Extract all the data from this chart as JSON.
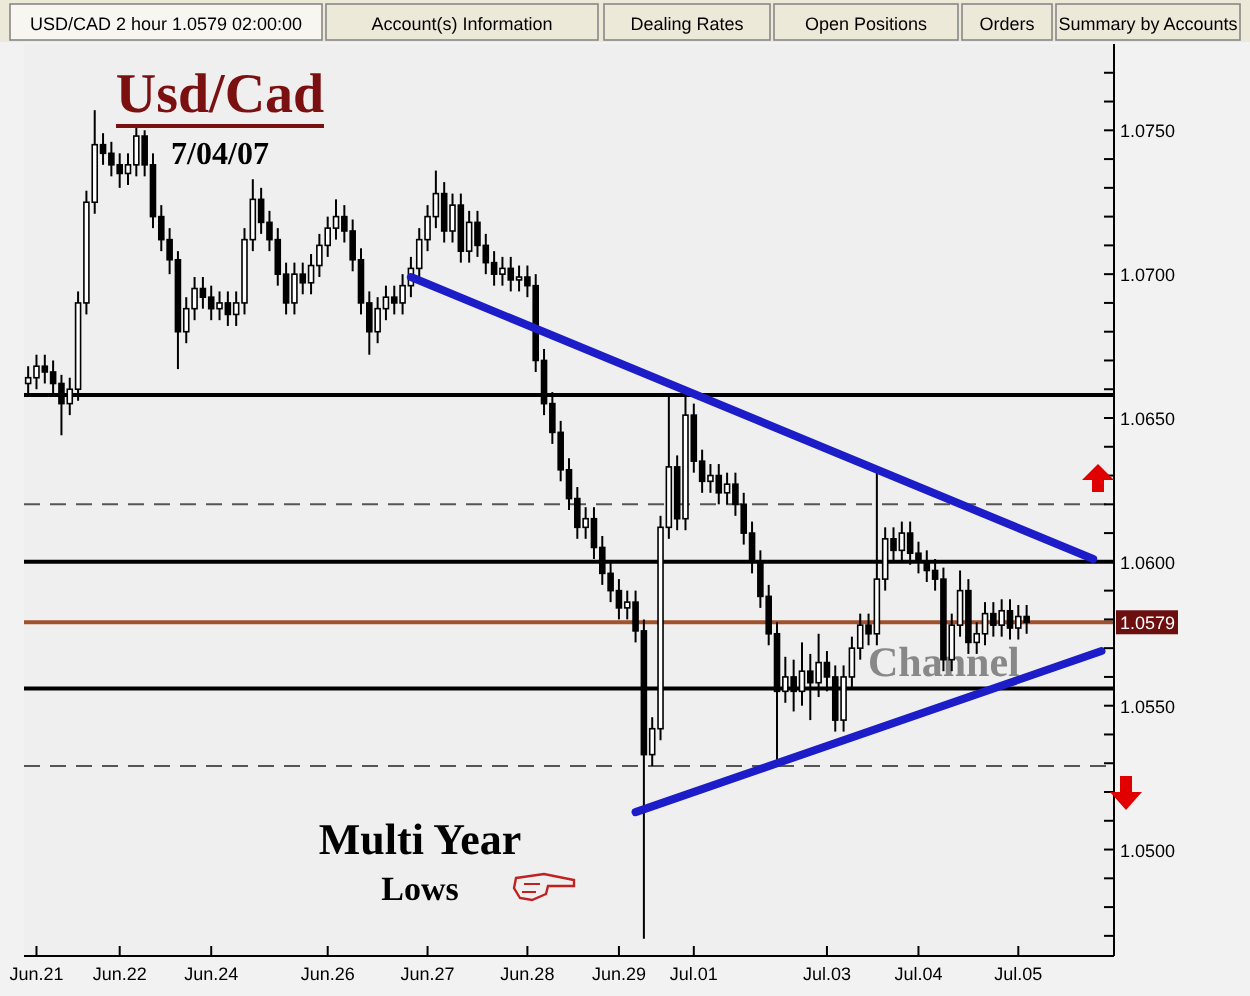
{
  "chart_data": {
    "type": "candlestick",
    "title": "Usd/Cad",
    "subtitle": "7/04/07",
    "annotations": [
      "USD/CAD 2 hour 1.0579 02:00:00",
      "Account(s) Information",
      "Dealing Rates",
      "Open Positions",
      "Orders",
      "Summary by Accounts",
      "Channel",
      "Multi Year",
      "Lows"
    ],
    "categories": [
      null,
      "Jun.21",
      null,
      null,
      null,
      null,
      null,
      null,
      null,
      null,
      null,
      "Jun.22",
      null,
      null,
      null,
      null,
      null,
      null,
      null,
      null,
      null,
      null,
      "Jun.24",
      null,
      null,
      null,
      null,
      null,
      null,
      null,
      null,
      null,
      null,
      null,
      null,
      null,
      "Jun.26",
      null,
      null,
      null,
      null,
      null,
      null,
      null,
      null,
      null,
      null,
      null,
      "Jun.27",
      null,
      null,
      null,
      null,
      null,
      null,
      null,
      null,
      null,
      null,
      null,
      "Jun.28",
      null,
      null,
      null,
      null,
      null,
      null,
      null,
      null,
      null,
      null,
      "Jun.29",
      null,
      null,
      null,
      null,
      null,
      null,
      null,
      null,
      "Jul.01",
      null,
      null,
      null,
      null,
      null,
      null,
      null,
      null,
      null,
      null,
      null,
      null,
      null,
      null,
      null,
      "Jul.03",
      null,
      null,
      null,
      null,
      null,
      null,
      null,
      null,
      null,
      null,
      "Jul.04",
      null,
      null,
      null,
      null,
      null,
      null,
      null,
      null,
      null,
      null,
      null,
      "Jul.05",
      null,
      null,
      null,
      null,
      null,
      null,
      null,
      null,
      null,
      null,
      null
    ],
    "ohlc": [
      [
        1.0662,
        1.0668,
        1.0658,
        1.0664
      ],
      [
        1.0664,
        1.0672,
        1.066,
        1.0668
      ],
      [
        1.0668,
        1.0672,
        1.0662,
        1.0666
      ],
      [
        1.0666,
        1.067,
        1.0658,
        1.0662
      ],
      [
        1.0662,
        1.0665,
        1.0644,
        1.0655
      ],
      [
        1.0655,
        1.0664,
        1.0651,
        1.066
      ],
      [
        1.066,
        1.0694,
        1.0656,
        1.069
      ],
      [
        1.069,
        1.0729,
        1.0686,
        1.0725
      ],
      [
        1.0725,
        1.0757,
        1.0721,
        1.0745
      ],
      [
        1.0745,
        1.0749,
        1.0738,
        1.0742
      ],
      [
        1.0742,
        1.0746,
        1.0734,
        1.0738
      ],
      [
        1.0738,
        1.0742,
        1.073,
        1.0735
      ],
      [
        1.0735,
        1.0742,
        1.0731,
        1.0738
      ],
      [
        1.0738,
        1.0752,
        1.0734,
        1.0748
      ],
      [
        1.0748,
        1.075,
        1.0734,
        1.0738
      ],
      [
        1.0738,
        1.0742,
        1.0716,
        1.072
      ],
      [
        1.072,
        1.0724,
        1.0708,
        1.0712
      ],
      [
        1.0712,
        1.0716,
        1.07,
        1.0705
      ],
      [
        1.0705,
        1.0708,
        1.0667,
        1.068
      ],
      [
        1.068,
        1.0692,
        1.0676,
        1.0688
      ],
      [
        1.0688,
        1.0699,
        1.0684,
        1.0695
      ],
      [
        1.0695,
        1.0699,
        1.0688,
        1.0692
      ],
      [
        1.0692,
        1.0696,
        1.0684,
        1.0688
      ],
      [
        1.0688,
        1.0694,
        1.0684,
        1.069
      ],
      [
        1.069,
        1.0694,
        1.0682,
        1.0686
      ],
      [
        1.0686,
        1.0694,
        1.0682,
        1.069
      ],
      [
        1.069,
        1.0716,
        1.0686,
        1.0712
      ],
      [
        1.0712,
        1.0733,
        1.0708,
        1.0726
      ],
      [
        1.0726,
        1.073,
        1.0714,
        1.0718
      ],
      [
        1.0718,
        1.0722,
        1.0708,
        1.0712
      ],
      [
        1.0712,
        1.0716,
        1.0696,
        1.07
      ],
      [
        1.07,
        1.0704,
        1.0686,
        1.069
      ],
      [
        1.069,
        1.0704,
        1.0686,
        1.07
      ],
      [
        1.07,
        1.0704,
        1.0693,
        1.0697
      ],
      [
        1.0697,
        1.0707,
        1.0693,
        1.0703
      ],
      [
        1.0703,
        1.0714,
        1.0699,
        1.071
      ],
      [
        1.071,
        1.072,
        1.0706,
        1.0716
      ],
      [
        1.0716,
        1.0726,
        1.0712,
        1.072
      ],
      [
        1.072,
        1.0724,
        1.0711,
        1.0715
      ],
      [
        1.0715,
        1.0719,
        1.0701,
        1.0705
      ],
      [
        1.0705,
        1.0709,
        1.0686,
        1.069
      ],
      [
        1.069,
        1.0694,
        1.0672,
        1.068
      ],
      [
        1.068,
        1.0692,
        1.0676,
        1.0688
      ],
      [
        1.0688,
        1.0696,
        1.0684,
        1.0692
      ],
      [
        1.0692,
        1.0696,
        1.0686,
        1.069
      ],
      [
        1.069,
        1.07,
        1.0686,
        1.0696
      ],
      [
        1.0696,
        1.0706,
        1.0692,
        1.0702
      ],
      [
        1.0702,
        1.0716,
        1.0698,
        1.0712
      ],
      [
        1.0712,
        1.0724,
        1.0708,
        1.072
      ],
      [
        1.072,
        1.0736,
        1.0716,
        1.0728
      ],
      [
        1.0728,
        1.0732,
        1.0711,
        1.0715
      ],
      [
        1.0715,
        1.0728,
        1.0711,
        1.0724
      ],
      [
        1.0724,
        1.0728,
        1.0704,
        1.0708
      ],
      [
        1.0708,
        1.0722,
        1.0704,
        1.0718
      ],
      [
        1.0718,
        1.0722,
        1.0706,
        1.071
      ],
      [
        1.071,
        1.0714,
        1.07,
        1.0704
      ],
      [
        1.0704,
        1.0708,
        1.0696,
        1.07
      ],
      [
        1.07,
        1.0706,
        1.0696,
        1.0702
      ],
      [
        1.0702,
        1.0706,
        1.0694,
        1.0698
      ],
      [
        1.0698,
        1.0703,
        1.0694,
        1.0699
      ],
      [
        1.0699,
        1.0703,
        1.0692,
        1.0696
      ],
      [
        1.0696,
        1.07,
        1.0666,
        1.067
      ],
      [
        1.067,
        1.0674,
        1.0651,
        1.0655
      ],
      [
        1.0655,
        1.0659,
        1.0641,
        1.0645
      ],
      [
        1.0645,
        1.0649,
        1.0628,
        1.0632
      ],
      [
        1.0632,
        1.0636,
        1.0618,
        1.0622
      ],
      [
        1.0622,
        1.0626,
        1.0608,
        1.0612
      ],
      [
        1.0612,
        1.0619,
        1.0608,
        1.0615
      ],
      [
        1.0615,
        1.0619,
        1.0601,
        1.0605
      ],
      [
        1.0605,
        1.0609,
        1.0592,
        1.0596
      ],
      [
        1.0596,
        1.06,
        1.0586,
        1.059
      ],
      [
        1.059,
        1.0594,
        1.058,
        1.0584
      ],
      [
        1.0584,
        1.059,
        1.058,
        1.0586
      ],
      [
        1.0586,
        1.059,
        1.0572,
        1.0576
      ],
      [
        1.0576,
        1.058,
        1.0469,
        1.0533
      ],
      [
        1.0533,
        1.0546,
        1.0529,
        1.0542
      ],
      [
        1.0542,
        1.0616,
        1.0538,
        1.0612
      ],
      [
        1.0612,
        1.0658,
        1.0608,
        1.0633
      ],
      [
        1.0633,
        1.0637,
        1.0611,
        1.0615
      ],
      [
        1.0615,
        1.0658,
        1.0611,
        1.0651
      ],
      [
        1.0651,
        1.0655,
        1.0631,
        1.0635
      ],
      [
        1.0635,
        1.0639,
        1.0624,
        1.0628
      ],
      [
        1.0628,
        1.0634,
        1.0624,
        1.063
      ],
      [
        1.063,
        1.0634,
        1.062,
        1.0624
      ],
      [
        1.0624,
        1.0631,
        1.062,
        1.0627
      ],
      [
        1.0627,
        1.0631,
        1.0616,
        1.062
      ],
      [
        1.062,
        1.0624,
        1.0606,
        1.061
      ],
      [
        1.061,
        1.0614,
        1.0596,
        1.06
      ],
      [
        1.06,
        1.0604,
        1.0584,
        1.0588
      ],
      [
        1.0588,
        1.0592,
        1.0571,
        1.0575
      ],
      [
        1.0575,
        1.0579,
        1.0531,
        1.0555
      ],
      [
        1.0555,
        1.0567,
        1.0551,
        1.056
      ],
      [
        1.056,
        1.0566,
        1.0548,
        1.0555
      ],
      [
        1.0555,
        1.0572,
        1.055,
        1.0562
      ],
      [
        1.0562,
        1.0568,
        1.0545,
        1.0558
      ],
      [
        1.0558,
        1.0575,
        1.0553,
        1.0565
      ],
      [
        1.0565,
        1.0569,
        1.0555,
        1.056
      ],
      [
        1.056,
        1.0564,
        1.0541,
        1.0545
      ],
      [
        1.0545,
        1.0564,
        1.0541,
        1.056
      ],
      [
        1.056,
        1.0574,
        1.0556,
        1.057
      ],
      [
        1.057,
        1.0582,
        1.0566,
        1.0578
      ],
      [
        1.0578,
        1.0582,
        1.0571,
        1.0575
      ],
      [
        1.0575,
        1.0631,
        1.0571,
        1.0594
      ],
      [
        1.0594,
        1.0612,
        1.059,
        1.0608
      ],
      [
        1.0608,
        1.0612,
        1.06,
        1.0604
      ],
      [
        1.0604,
        1.0614,
        1.06,
        1.061
      ],
      [
        1.061,
        1.0614,
        1.0599,
        1.0603
      ],
      [
        1.0603,
        1.0607,
        1.0596,
        1.06
      ],
      [
        1.06,
        1.0604,
        1.0593,
        1.0597
      ],
      [
        1.0597,
        1.0601,
        1.059,
        1.0594
      ],
      [
        1.0594,
        1.0598,
        1.0562,
        1.0566
      ],
      [
        1.0566,
        1.0582,
        1.0562,
        1.0578
      ],
      [
        1.0578,
        1.0597,
        1.0574,
        1.059
      ],
      [
        1.059,
        1.0594,
        1.0568,
        1.0572
      ],
      [
        1.0572,
        1.0579,
        1.0568,
        1.0575
      ],
      [
        1.0575,
        1.0586,
        1.0571,
        1.0582
      ],
      [
        1.0582,
        1.0586,
        1.0574,
        1.0578
      ],
      [
        1.0578,
        1.0587,
        1.0574,
        1.0583
      ],
      [
        1.0583,
        1.0587,
        1.0573,
        1.0577
      ],
      [
        1.0577,
        1.0585,
        1.0573,
        1.0581
      ],
      [
        1.0581,
        1.0585,
        1.0575,
        1.0579
      ],
      null,
      null,
      null,
      null,
      null,
      null,
      null,
      null,
      null,
      null
    ],
    "series": [
      {
        "type": "line",
        "color": "#1c1cc8",
        "values": [
          null,
          null,
          null,
          null,
          null,
          null,
          null,
          null,
          null,
          null,
          null,
          null,
          null,
          null,
          null,
          null,
          null,
          null,
          null,
          null,
          null,
          null,
          null,
          null,
          null,
          null,
          null,
          null,
          null,
          null,
          null,
          null,
          null,
          null,
          null,
          null,
          null,
          null,
          null,
          null,
          null,
          null,
          null,
          null,
          null,
          null,
          1.0699,
          null,
          null,
          null,
          null,
          null,
          null,
          null,
          null,
          null,
          null,
          null,
          null,
          null,
          null,
          null,
          null,
          null,
          null,
          null,
          null,
          null,
          null,
          null,
          null,
          null,
          null,
          null,
          null,
          null,
          null,
          null,
          null,
          null,
          null,
          null,
          null,
          null,
          null,
          null,
          null,
          null,
          null,
          null,
          null,
          null,
          null,
          null,
          null,
          null,
          null,
          null,
          null,
          null,
          null,
          null,
          null,
          null,
          null,
          null,
          null,
          null,
          null,
          null,
          null,
          null,
          null,
          null,
          null,
          null,
          null,
          null,
          null,
          null,
          null,
          null,
          null,
          null,
          null,
          null,
          null,
          null,
          1.0601,
          null,
          null
        ]
      },
      {
        "type": "line",
        "color": "#1c1cc8",
        "values": [
          null,
          null,
          null,
          null,
          null,
          null,
          null,
          null,
          null,
          null,
          null,
          null,
          null,
          null,
          null,
          null,
          null,
          null,
          null,
          null,
          null,
          null,
          null,
          null,
          null,
          null,
          null,
          null,
          null,
          null,
          null,
          null,
          null,
          null,
          null,
          null,
          null,
          null,
          null,
          null,
          null,
          null,
          null,
          null,
          null,
          null,
          null,
          null,
          null,
          null,
          null,
          null,
          null,
          null,
          null,
          null,
          null,
          null,
          null,
          null,
          null,
          null,
          null,
          null,
          null,
          null,
          null,
          null,
          null,
          null,
          null,
          null,
          null,
          1.0513,
          null,
          null,
          null,
          null,
          null,
          null,
          null,
          null,
          null,
          null,
          null,
          null,
          null,
          null,
          null,
          null,
          null,
          null,
          null,
          null,
          null,
          null,
          null,
          null,
          null,
          null,
          null,
          null,
          null,
          null,
          null,
          null,
          null,
          null,
          null,
          null,
          null,
          null,
          null,
          null,
          null,
          null,
          null,
          null,
          null,
          null,
          null,
          null,
          null,
          null,
          null,
          null,
          null,
          null,
          null,
          1.0569,
          null
        ]
      }
    ],
    "ref_lines": [
      {
        "axis": "y",
        "value": 1.0658,
        "color": "#000000",
        "line_style": "solid"
      },
      {
        "axis": "y",
        "value": 1.062,
        "color": "#555555",
        "line_style": "dashed"
      },
      {
        "axis": "y",
        "value": 1.06,
        "color": "#000000",
        "line_style": "solid"
      },
      {
        "axis": "y",
        "value": 1.0579,
        "label": "1.0579",
        "color": "#a0522d",
        "line_style": "solid"
      },
      {
        "axis": "y",
        "value": 1.0556,
        "color": "#000000",
        "line_style": "solid"
      },
      {
        "axis": "y",
        "value": 1.0529,
        "color": "#555555",
        "line_style": "dashed"
      }
    ],
    "ylim": [
      1.0463,
      1.078
    ],
    "yticks": [
      {
        "value": 1.047,
        "label": null
      },
      {
        "value": 1.048,
        "label": null
      },
      {
        "value": 1.049,
        "label": null
      },
      {
        "value": 1.05,
        "label": "1.0500"
      },
      {
        "value": 1.051,
        "label": null
      },
      {
        "value": 1.052,
        "label": null
      },
      {
        "value": 1.053,
        "label": null
      },
      {
        "value": 1.054,
        "label": null
      },
      {
        "value": 1.055,
        "label": "1.0550"
      },
      {
        "value": 1.056,
        "label": null
      },
      {
        "value": 1.057,
        "label": null
      },
      {
        "value": 1.058,
        "label": null
      },
      {
        "value": 1.059,
        "label": null
      },
      {
        "value": 1.06,
        "label": "1.0600"
      },
      {
        "value": 1.061,
        "label": null
      },
      {
        "value": 1.062,
        "label": null
      },
      {
        "value": 1.063,
        "label": null
      },
      {
        "value": 1.064,
        "label": null
      },
      {
        "value": 1.065,
        "label": "1.0650"
      },
      {
        "value": 1.066,
        "label": null
      },
      {
        "value": 1.067,
        "label": null
      },
      {
        "value": 1.068,
        "label": null
      },
      {
        "value": 1.069,
        "label": null
      },
      {
        "value": 1.07,
        "label": "1.0700"
      },
      {
        "value": 1.071,
        "label": null
      },
      {
        "value": 1.072,
        "label": null
      },
      {
        "value": 1.073,
        "label": null
      },
      {
        "value": 1.074,
        "label": null
      },
      {
        "value": 1.075,
        "label": "1.0750"
      },
      {
        "value": 1.076,
        "label": null
      },
      {
        "value": 1.077,
        "label": null
      }
    ]
  }
}
